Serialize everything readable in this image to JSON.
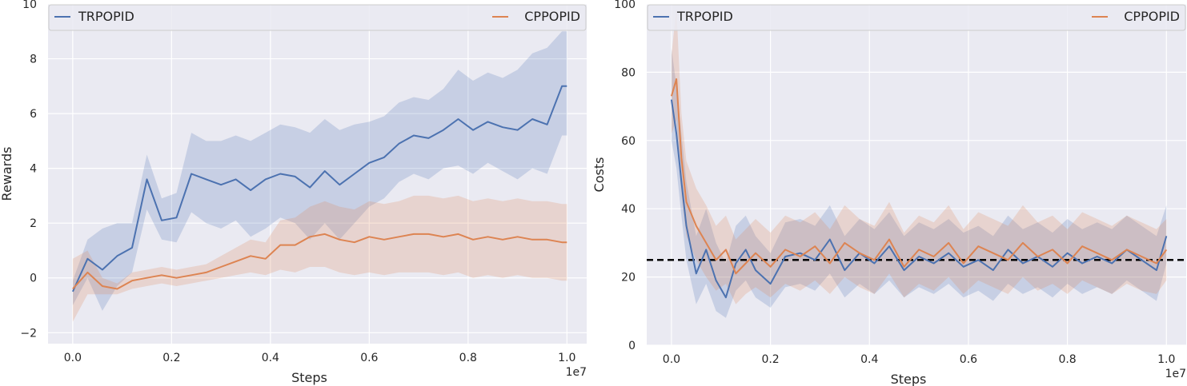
{
  "chart_data": [
    {
      "type": "line",
      "xlabel": "Steps",
      "ylabel": "Rewards",
      "x_offset_label": "1e7",
      "xlim": [
        -0.05,
        1.04
      ],
      "ylim": [
        -2.4,
        10
      ],
      "xticks": [
        0.0,
        0.2,
        0.4,
        0.6,
        0.8,
        1.0
      ],
      "xtick_labels": [
        "0.0",
        "0.2",
        "0.4",
        "0.6",
        "0.8",
        "1.0"
      ],
      "yticks": [
        -2,
        0,
        2,
        4,
        6,
        8,
        10
      ],
      "ytick_labels": [
        "−2",
        "0",
        "2",
        "4",
        "6",
        "8",
        "10"
      ],
      "grid": true,
      "legend_position": "top",
      "series": [
        {
          "name": "TRPOPID",
          "color": "#4c72b0",
          "x": [
            0.0,
            0.03,
            0.06,
            0.09,
            0.12,
            0.15,
            0.18,
            0.21,
            0.24,
            0.27,
            0.3,
            0.33,
            0.36,
            0.39,
            0.42,
            0.45,
            0.48,
            0.51,
            0.54,
            0.57,
            0.6,
            0.63,
            0.66,
            0.69,
            0.72,
            0.75,
            0.78,
            0.81,
            0.84,
            0.87,
            0.9,
            0.93,
            0.96,
            0.99,
            1.0
          ],
          "values": [
            -0.5,
            0.7,
            0.3,
            0.8,
            1.1,
            3.6,
            2.1,
            2.2,
            3.8,
            3.6,
            3.4,
            3.6,
            3.2,
            3.6,
            3.8,
            3.7,
            3.3,
            3.9,
            3.4,
            3.8,
            4.2,
            4.4,
            4.9,
            5.2,
            5.1,
            5.4,
            5.8,
            5.4,
            5.7,
            5.5,
            5.4,
            5.8,
            5.6,
            7.0,
            7.0
          ],
          "lower": [
            -1.0,
            0.0,
            -1.2,
            -0.3,
            0.2,
            2.5,
            1.4,
            1.3,
            2.4,
            2.0,
            1.8,
            2.1,
            1.5,
            1.8,
            2.2,
            2.0,
            1.4,
            2.0,
            1.4,
            2.0,
            2.6,
            2.9,
            3.5,
            3.8,
            3.6,
            4.0,
            4.1,
            3.8,
            4.2,
            3.9,
            3.6,
            4.0,
            3.8,
            5.2,
            5.2
          ],
          "upper": [
            -0.1,
            1.4,
            1.8,
            2.0,
            2.0,
            4.5,
            2.9,
            3.1,
            5.3,
            5.0,
            5.0,
            5.2,
            5.0,
            5.3,
            5.6,
            5.5,
            5.3,
            5.8,
            5.4,
            5.6,
            5.7,
            5.9,
            6.4,
            6.6,
            6.5,
            6.9,
            7.6,
            7.2,
            7.5,
            7.3,
            7.6,
            8.2,
            8.4,
            9.0,
            9.0
          ]
        },
        {
          "name": "CPPOPID",
          "color": "#dd8452",
          "x": [
            0.0,
            0.03,
            0.06,
            0.09,
            0.12,
            0.15,
            0.18,
            0.21,
            0.24,
            0.27,
            0.3,
            0.33,
            0.36,
            0.39,
            0.42,
            0.45,
            0.48,
            0.51,
            0.54,
            0.57,
            0.6,
            0.63,
            0.66,
            0.69,
            0.72,
            0.75,
            0.78,
            0.81,
            0.84,
            0.87,
            0.9,
            0.93,
            0.96,
            0.99,
            1.0
          ],
          "values": [
            -0.4,
            0.2,
            -0.3,
            -0.4,
            -0.1,
            0.0,
            0.1,
            0.0,
            0.1,
            0.2,
            0.4,
            0.6,
            0.8,
            0.7,
            1.2,
            1.2,
            1.5,
            1.6,
            1.4,
            1.3,
            1.5,
            1.4,
            1.5,
            1.6,
            1.6,
            1.5,
            1.6,
            1.4,
            1.5,
            1.4,
            1.5,
            1.4,
            1.4,
            1.3,
            1.3
          ],
          "lower": [
            -1.6,
            -0.6,
            -0.6,
            -0.6,
            -0.4,
            -0.3,
            -0.2,
            -0.3,
            -0.2,
            -0.1,
            0.0,
            0.1,
            0.2,
            0.1,
            0.3,
            0.2,
            0.4,
            0.4,
            0.2,
            0.1,
            0.2,
            0.1,
            0.2,
            0.2,
            0.2,
            0.1,
            0.2,
            0.0,
            0.1,
            0.0,
            0.1,
            0.0,
            0.0,
            -0.1,
            -0.1
          ],
          "upper": [
            0.7,
            1.0,
            0.0,
            -0.2,
            0.2,
            0.3,
            0.4,
            0.3,
            0.4,
            0.5,
            0.8,
            1.1,
            1.4,
            1.3,
            2.1,
            2.2,
            2.6,
            2.8,
            2.6,
            2.5,
            2.8,
            2.7,
            2.8,
            3.0,
            3.0,
            2.9,
            3.0,
            2.8,
            2.9,
            2.8,
            2.9,
            2.8,
            2.8,
            2.7,
            2.7
          ]
        }
      ]
    },
    {
      "type": "line",
      "xlabel": "Steps",
      "ylabel": "Costs",
      "x_offset_label": "1e7",
      "xlim": [
        -0.05,
        1.04
      ],
      "ylim": [
        0,
        100
      ],
      "xticks": [
        0.0,
        0.2,
        0.4,
        0.6,
        0.8,
        1.0
      ],
      "xtick_labels": [
        "0.0",
        "0.2",
        "0.4",
        "0.6",
        "0.8",
        "1.0"
      ],
      "yticks": [
        0,
        20,
        40,
        60,
        80,
        100
      ],
      "ytick_labels": [
        "0",
        "20",
        "40",
        "60",
        "80",
        "100"
      ],
      "grid": true,
      "legend_position": "top",
      "threshold": 25,
      "series": [
        {
          "name": "TRPOPID",
          "color": "#4c72b0",
          "x": [
            0.0,
            0.01,
            0.02,
            0.03,
            0.05,
            0.07,
            0.09,
            0.11,
            0.13,
            0.15,
            0.17,
            0.2,
            0.23,
            0.26,
            0.29,
            0.32,
            0.35,
            0.38,
            0.41,
            0.44,
            0.47,
            0.5,
            0.53,
            0.56,
            0.59,
            0.62,
            0.65,
            0.68,
            0.71,
            0.74,
            0.77,
            0.8,
            0.83,
            0.86,
            0.89,
            0.92,
            0.95,
            0.98,
            1.0
          ],
          "values": [
            72,
            62,
            48,
            35,
            21,
            28,
            19,
            14,
            24,
            28,
            22,
            18,
            26,
            27,
            25,
            31,
            22,
            27,
            24,
            29,
            22,
            26,
            24,
            27,
            23,
            25,
            22,
            28,
            24,
            26,
            23,
            27,
            24,
            26,
            24,
            28,
            25,
            22,
            32
          ],
          "lower": [
            60,
            52,
            38,
            25,
            12,
            18,
            10,
            8,
            16,
            19,
            14,
            11,
            17,
            18,
            16,
            21,
            14,
            18,
            15,
            19,
            14,
            17,
            15,
            18,
            14,
            16,
            13,
            18,
            15,
            17,
            14,
            18,
            15,
            17,
            15,
            19,
            16,
            13,
            24
          ],
          "upper": [
            87,
            76,
            62,
            48,
            32,
            40,
            30,
            24,
            35,
            38,
            32,
            27,
            36,
            37,
            35,
            41,
            32,
            37,
            34,
            39,
            32,
            36,
            34,
            37,
            33,
            35,
            32,
            38,
            34,
            36,
            33,
            37,
            34,
            36,
            34,
            38,
            35,
            32,
            41
          ]
        },
        {
          "name": "CPPOPID",
          "color": "#dd8452",
          "x": [
            0.0,
            0.01,
            0.02,
            0.03,
            0.05,
            0.07,
            0.09,
            0.11,
            0.13,
            0.15,
            0.17,
            0.2,
            0.23,
            0.26,
            0.29,
            0.32,
            0.35,
            0.38,
            0.41,
            0.44,
            0.47,
            0.5,
            0.53,
            0.56,
            0.59,
            0.62,
            0.65,
            0.68,
            0.71,
            0.74,
            0.77,
            0.8,
            0.83,
            0.86,
            0.89,
            0.92,
            0.95,
            0.98,
            1.0
          ],
          "values": [
            73,
            78,
            55,
            42,
            35,
            30,
            25,
            28,
            21,
            24,
            27,
            23,
            28,
            26,
            29,
            24,
            30,
            27,
            25,
            31,
            23,
            28,
            26,
            30,
            24,
            29,
            27,
            25,
            30,
            26,
            28,
            24,
            29,
            27,
            25,
            28,
            26,
            24,
            28
          ],
          "lower": [
            62,
            66,
            44,
            32,
            25,
            20,
            16,
            18,
            12,
            15,
            17,
            14,
            18,
            16,
            19,
            15,
            20,
            17,
            15,
            21,
            14,
            18,
            16,
            20,
            15,
            19,
            17,
            15,
            20,
            16,
            18,
            15,
            19,
            17,
            15,
            18,
            16,
            15,
            19
          ],
          "upper": [
            85,
            99,
            68,
            54,
            46,
            41,
            35,
            38,
            31,
            34,
            37,
            33,
            38,
            36,
            39,
            34,
            41,
            37,
            35,
            42,
            33,
            38,
            36,
            41,
            34,
            39,
            37,
            35,
            41,
            36,
            38,
            34,
            39,
            37,
            35,
            38,
            36,
            34,
            37
          ]
        }
      ]
    }
  ]
}
